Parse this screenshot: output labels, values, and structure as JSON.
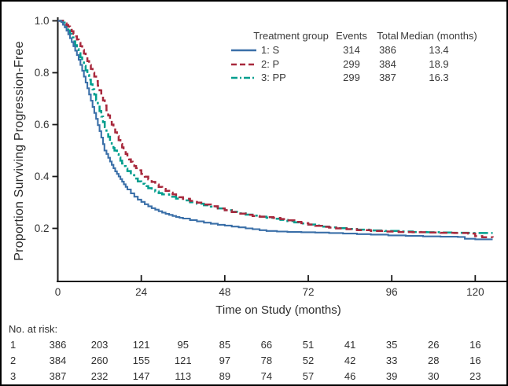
{
  "figure": {
    "background": "#ffffff",
    "border_color": "#000000",
    "axis_color": "#1a1a1a",
    "text_color": "#2f2f2f"
  },
  "chart_data": {
    "type": "line",
    "subtype": "kaplan-meier-step",
    "title": "",
    "xlabel": "Time on Study (months)",
    "ylabel": "Proportion Surviving Progression-Free",
    "xlim": [
      0,
      129
    ],
    "ylim": [
      0,
      1.0
    ],
    "grid": false,
    "xticks": [
      0,
      24,
      48,
      72,
      96,
      120
    ],
    "xtick_labels": [
      "0",
      "24",
      "48",
      "72",
      "96",
      "120"
    ],
    "yticks": [
      0.2,
      0.4,
      0.6,
      0.8,
      1.0
    ],
    "ytick_labels": [
      "0.2",
      "0.4",
      "0.6",
      "0.8",
      "1.0"
    ],
    "legend": {
      "position": "top-right-inside",
      "headers": [
        "Treatment group",
        "Events",
        "Total",
        "Median (months)"
      ]
    },
    "series": [
      {
        "name": "1: S",
        "events": "314",
        "total": "386",
        "median": "13.4",
        "color": "#3A6FA8",
        "line_style": "solid",
        "points": [
          [
            0,
            1.0
          ],
          [
            1,
            0.995
          ],
          [
            1.5,
            0.985
          ],
          [
            2,
            0.975
          ],
          [
            2.5,
            0.962
          ],
          [
            3,
            0.948
          ],
          [
            3.5,
            0.933
          ],
          [
            4,
            0.918
          ],
          [
            4.5,
            0.902
          ],
          [
            5,
            0.885
          ],
          [
            5.5,
            0.868
          ],
          [
            6,
            0.85
          ],
          [
            6.5,
            0.83
          ],
          [
            7,
            0.808
          ],
          [
            7.5,
            0.785
          ],
          [
            8,
            0.762
          ],
          [
            8.5,
            0.74
          ],
          [
            9,
            0.716
          ],
          [
            9.5,
            0.692
          ],
          [
            10,
            0.668
          ],
          [
            10.5,
            0.645
          ],
          [
            11,
            0.622
          ],
          [
            11.5,
            0.598
          ],
          [
            12,
            0.575
          ],
          [
            12.5,
            0.55
          ],
          [
            13,
            0.525
          ],
          [
            13.4,
            0.5
          ],
          [
            14,
            0.487
          ],
          [
            14.5,
            0.472
          ],
          [
            15,
            0.458
          ],
          [
            15.5,
            0.445
          ],
          [
            16,
            0.432
          ],
          [
            16.5,
            0.42
          ],
          [
            17,
            0.41
          ],
          [
            17.5,
            0.4
          ],
          [
            18,
            0.39
          ],
          [
            18.5,
            0.38
          ],
          [
            19,
            0.37
          ],
          [
            19.5,
            0.36
          ],
          [
            20,
            0.35
          ],
          [
            21,
            0.335
          ],
          [
            22,
            0.322
          ],
          [
            23,
            0.311
          ],
          [
            24,
            0.302
          ],
          [
            25,
            0.293
          ],
          [
            26,
            0.285
          ],
          [
            27,
            0.278
          ],
          [
            28,
            0.272
          ],
          [
            29,
            0.266
          ],
          [
            30,
            0.261
          ],
          [
            31,
            0.256
          ],
          [
            32,
            0.252
          ],
          [
            33,
            0.248
          ],
          [
            34,
            0.244
          ],
          [
            35,
            0.241
          ],
          [
            36,
            0.238
          ],
          [
            38,
            0.232
          ],
          [
            40,
            0.227
          ],
          [
            42,
            0.222
          ],
          [
            44,
            0.218
          ],
          [
            46,
            0.214
          ],
          [
            48,
            0.211
          ],
          [
            50,
            0.207
          ],
          [
            52,
            0.204
          ],
          [
            54,
            0.2
          ],
          [
            56,
            0.197
          ],
          [
            58,
            0.193
          ],
          [
            60,
            0.19
          ],
          [
            63,
            0.188
          ],
          [
            66,
            0.186
          ],
          [
            70,
            0.185
          ],
          [
            74,
            0.184
          ],
          [
            78,
            0.182
          ],
          [
            82,
            0.18
          ],
          [
            86,
            0.178
          ],
          [
            90,
            0.176
          ],
          [
            95,
            0.173
          ],
          [
            100,
            0.171
          ],
          [
            105,
            0.169
          ],
          [
            110,
            0.168
          ],
          [
            115,
            0.167
          ],
          [
            117,
            0.16
          ],
          [
            120,
            0.158
          ],
          [
            125,
            0.158
          ]
        ]
      },
      {
        "name": "2: P",
        "events": "299",
        "total": "384",
        "median": "18.9",
        "color": "#A8293D",
        "line_style": "dashed",
        "points": [
          [
            0,
            1.0
          ],
          [
            1.5,
            0.995
          ],
          [
            2,
            0.99
          ],
          [
            2.5,
            0.984
          ],
          [
            3,
            0.978
          ],
          [
            3.5,
            0.97
          ],
          [
            4,
            0.96
          ],
          [
            4.5,
            0.95
          ],
          [
            5,
            0.94
          ],
          [
            5.5,
            0.928
          ],
          [
            6,
            0.915
          ],
          [
            6.5,
            0.902
          ],
          [
            7,
            0.888
          ],
          [
            7.5,
            0.874
          ],
          [
            8,
            0.86
          ],
          [
            8.5,
            0.845
          ],
          [
            9,
            0.83
          ],
          [
            9.5,
            0.815
          ],
          [
            10,
            0.8
          ],
          [
            10.5,
            0.785
          ],
          [
            11,
            0.768
          ],
          [
            11.5,
            0.75
          ],
          [
            12,
            0.732
          ],
          [
            12.5,
            0.712
          ],
          [
            13,
            0.693
          ],
          [
            13.5,
            0.674
          ],
          [
            14,
            0.655
          ],
          [
            14.5,
            0.635
          ],
          [
            15,
            0.616
          ],
          [
            15.5,
            0.6
          ],
          [
            16,
            0.585
          ],
          [
            16.5,
            0.57
          ],
          [
            17,
            0.555
          ],
          [
            17.5,
            0.54
          ],
          [
            18,
            0.525
          ],
          [
            18.5,
            0.512
          ],
          [
            18.9,
            0.5
          ],
          [
            19.5,
            0.487
          ],
          [
            20,
            0.476
          ],
          [
            20.5,
            0.466
          ],
          [
            21,
            0.457
          ],
          [
            21.5,
            0.448
          ],
          [
            22,
            0.44
          ],
          [
            22.5,
            0.432
          ],
          [
            23,
            0.424
          ],
          [
            24,
            0.41
          ],
          [
            25,
            0.399
          ],
          [
            26,
            0.389
          ],
          [
            27,
            0.379
          ],
          [
            28,
            0.369
          ],
          [
            29,
            0.36
          ],
          [
            30,
            0.352
          ],
          [
            31,
            0.345
          ],
          [
            32,
            0.338
          ],
          [
            33,
            0.331
          ],
          [
            34,
            0.325
          ],
          [
            35,
            0.32
          ],
          [
            36,
            0.314
          ],
          [
            38,
            0.306
          ],
          [
            40,
            0.299
          ],
          [
            42,
            0.292
          ],
          [
            44,
            0.285
          ],
          [
            46,
            0.277
          ],
          [
            48,
            0.27
          ],
          [
            50,
            0.263
          ],
          [
            52,
            0.257
          ],
          [
            54,
            0.252
          ],
          [
            56,
            0.248
          ],
          [
            58,
            0.245
          ],
          [
            60,
            0.243
          ],
          [
            62,
            0.24
          ],
          [
            64,
            0.236
          ],
          [
            66,
            0.231
          ],
          [
            68,
            0.225
          ],
          [
            70,
            0.22
          ],
          [
            72,
            0.215
          ],
          [
            74,
            0.21
          ],
          [
            76,
            0.206
          ],
          [
            78,
            0.203
          ],
          [
            80,
            0.2
          ],
          [
            83,
            0.197
          ],
          [
            86,
            0.193
          ],
          [
            90,
            0.19
          ],
          [
            94,
            0.188
          ],
          [
            98,
            0.186
          ],
          [
            102,
            0.185
          ],
          [
            106,
            0.184
          ],
          [
            110,
            0.183
          ],
          [
            114,
            0.182
          ],
          [
            118,
            0.18
          ],
          [
            120,
            0.17
          ],
          [
            122,
            0.166
          ],
          [
            125,
            0.165
          ]
        ]
      },
      {
        "name": "3: PP",
        "events": "299",
        "total": "387",
        "median": "16.3",
        "color": "#009E8E",
        "line_style": "dash-dot",
        "points": [
          [
            0,
            1.0
          ],
          [
            1.5,
            0.993
          ],
          [
            2,
            0.985
          ],
          [
            2.5,
            0.975
          ],
          [
            3,
            0.963
          ],
          [
            3.5,
            0.95
          ],
          [
            4,
            0.936
          ],
          [
            4.5,
            0.921
          ],
          [
            5,
            0.906
          ],
          [
            5.5,
            0.891
          ],
          [
            6,
            0.875
          ],
          [
            6.5,
            0.859
          ],
          [
            7,
            0.843
          ],
          [
            7.5,
            0.826
          ],
          [
            8,
            0.809
          ],
          [
            8.5,
            0.791
          ],
          [
            9,
            0.773
          ],
          [
            9.5,
            0.755
          ],
          [
            10,
            0.736
          ],
          [
            10.5,
            0.716
          ],
          [
            11,
            0.694
          ],
          [
            11.5,
            0.673
          ],
          [
            12,
            0.652
          ],
          [
            12.5,
            0.631
          ],
          [
            13,
            0.61
          ],
          [
            13.5,
            0.59
          ],
          [
            14,
            0.571
          ],
          [
            14.5,
            0.553
          ],
          [
            15,
            0.537
          ],
          [
            15.5,
            0.523
          ],
          [
            16,
            0.51
          ],
          [
            16.3,
            0.5
          ],
          [
            17,
            0.486
          ],
          [
            17.5,
            0.473
          ],
          [
            18,
            0.461
          ],
          [
            18.5,
            0.45
          ],
          [
            19,
            0.44
          ],
          [
            19.5,
            0.43
          ],
          [
            20,
            0.421
          ],
          [
            21,
            0.405
          ],
          [
            22,
            0.392
          ],
          [
            23,
            0.381
          ],
          [
            24,
            0.372
          ],
          [
            25,
            0.363
          ],
          [
            26,
            0.355
          ],
          [
            27,
            0.348
          ],
          [
            28,
            0.342
          ],
          [
            29,
            0.336
          ],
          [
            30,
            0.331
          ],
          [
            32,
            0.322
          ],
          [
            34,
            0.315
          ],
          [
            36,
            0.308
          ],
          [
            38,
            0.301
          ],
          [
            40,
            0.295
          ],
          [
            42,
            0.289
          ],
          [
            44,
            0.284
          ],
          [
            46,
            0.277
          ],
          [
            48,
            0.27
          ],
          [
            50,
            0.264
          ],
          [
            52,
            0.258
          ],
          [
            54,
            0.253
          ],
          [
            56,
            0.249
          ],
          [
            58,
            0.245
          ],
          [
            60,
            0.241
          ],
          [
            62,
            0.237
          ],
          [
            64,
            0.233
          ],
          [
            66,
            0.228
          ],
          [
            68,
            0.223
          ],
          [
            70,
            0.219
          ],
          [
            72,
            0.215
          ],
          [
            74,
            0.211
          ],
          [
            76,
            0.207
          ],
          [
            78,
            0.204
          ],
          [
            80,
            0.201
          ],
          [
            83,
            0.198
          ],
          [
            86,
            0.195
          ],
          [
            90,
            0.192
          ],
          [
            94,
            0.19
          ],
          [
            98,
            0.188
          ],
          [
            102,
            0.186
          ],
          [
            106,
            0.185
          ],
          [
            110,
            0.184
          ],
          [
            114,
            0.183
          ],
          [
            118,
            0.182
          ],
          [
            125,
            0.182
          ]
        ]
      }
    ],
    "risk_table": {
      "label": "No. at risk:",
      "timepoints": [
        0,
        12,
        24,
        36,
        48,
        60,
        72,
        84,
        96,
        108,
        120
      ],
      "rows": [
        {
          "group": "1",
          "counts": [
            "386",
            "203",
            "121",
            "95",
            "85",
            "66",
            "51",
            "41",
            "35",
            "26",
            "16"
          ]
        },
        {
          "group": "2",
          "counts": [
            "384",
            "260",
            "155",
            "121",
            "97",
            "78",
            "52",
            "42",
            "33",
            "28",
            "16"
          ]
        },
        {
          "group": "3",
          "counts": [
            "387",
            "232",
            "147",
            "113",
            "89",
            "74",
            "57",
            "46",
            "39",
            "30",
            "23"
          ]
        }
      ]
    }
  }
}
